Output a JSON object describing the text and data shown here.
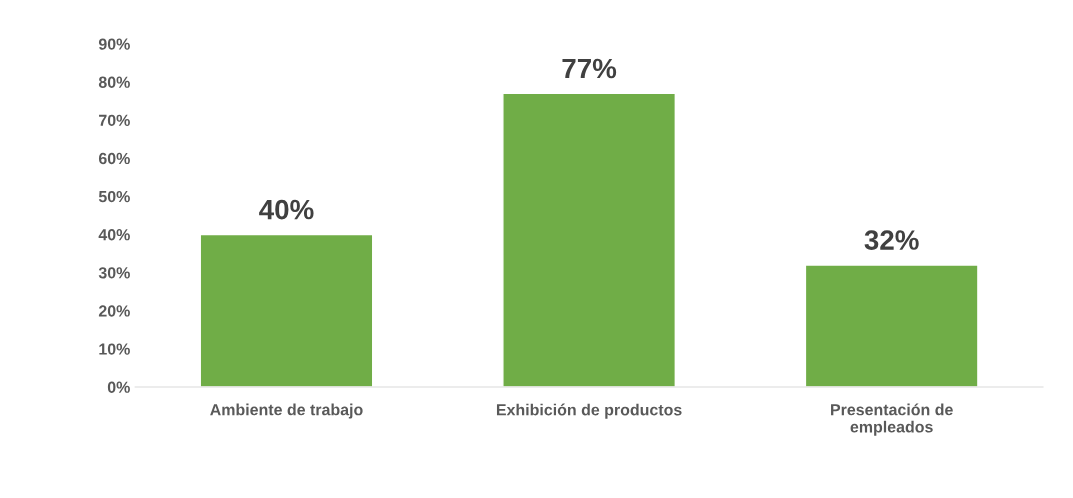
{
  "chart_data": {
    "type": "bar",
    "categories": [
      "Ambiente de trabajo",
      "Exhibición de productos",
      "Presentación de\nempleados"
    ],
    "values": [
      40,
      77,
      32
    ],
    "value_labels": [
      "40%",
      "77%",
      "32%"
    ],
    "color": "#70ad47",
    "ylim": [
      0,
      90
    ],
    "yticks": [
      {
        "value": 0,
        "label": "0%"
      },
      {
        "value": 10,
        "label": "10%"
      },
      {
        "value": 20,
        "label": "20%"
      },
      {
        "value": 30,
        "label": "30%"
      },
      {
        "value": 40,
        "label": "40%"
      },
      {
        "value": 50,
        "label": "50%"
      },
      {
        "value": 60,
        "label": "60%"
      },
      {
        "value": 70,
        "label": "70%"
      },
      {
        "value": 80,
        "label": "80%"
      },
      {
        "value": 90,
        "label": "90%"
      }
    ],
    "grid": false,
    "legend": false
  }
}
